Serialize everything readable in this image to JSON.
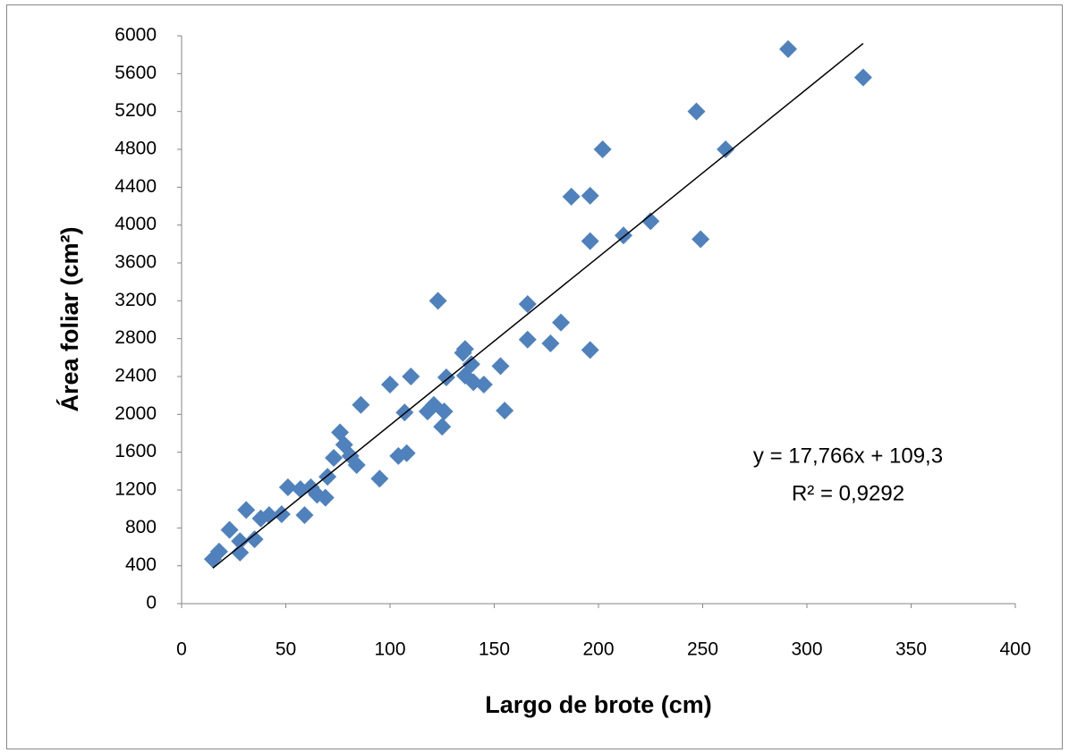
{
  "chart_data": {
    "type": "scatter",
    "x_label": "Largo de brote (cm)",
    "y_label": "Área foliar (cm²)",
    "xlim": [
      0,
      400
    ],
    "xticks": [
      0,
      50,
      100,
      150,
      200,
      250,
      300,
      350,
      400
    ],
    "ylim": [
      0,
      6000
    ],
    "yticks": [
      0,
      400,
      800,
      1200,
      1600,
      2000,
      2400,
      2800,
      3200,
      3600,
      4000,
      4400,
      4800,
      5200,
      5600,
      6000
    ],
    "grid": false,
    "series": [
      {
        "color": "#4f81bd",
        "x": [
          15,
          18,
          23,
          28,
          28,
          31,
          35,
          38,
          42,
          48,
          51,
          57,
          59,
          62,
          65,
          69,
          70,
          73,
          76,
          78,
          81,
          84,
          86,
          95,
          100,
          104,
          107,
          108,
          110,
          118,
          121,
          123,
          125,
          126,
          127,
          135,
          136,
          136,
          139,
          140,
          145,
          153,
          155,
          166,
          166,
          177,
          182,
          187,
          196,
          196,
          196,
          202,
          212,
          225,
          247,
          249,
          261,
          291,
          327
        ],
        "values": [
          470,
          550,
          780,
          660,
          540,
          990,
          680,
          900,
          935,
          945,
          1230,
          1210,
          935,
          1230,
          1150,
          1120,
          1340,
          1540,
          1810,
          1680,
          1560,
          1465,
          2100,
          1320,
          2315,
          1560,
          2020,
          1590,
          2400,
          2030,
          2100,
          3200,
          1870,
          2030,
          2390,
          2650,
          2690,
          2410,
          2530,
          2340,
          2315,
          2510,
          2040,
          3165,
          2790,
          2750,
          2970,
          4300,
          4310,
          2680,
          3830,
          4800,
          3890,
          4040,
          5200,
          3850,
          4800,
          5860,
          5560
        ]
      }
    ],
    "trendline": {
      "slope": 17.766,
      "intercept": 109.3,
      "label": "y = 17,766x + 109,3",
      "color": "#000000"
    },
    "r2": {
      "value": 0.9292,
      "label": "R² = 0,9292"
    }
  }
}
